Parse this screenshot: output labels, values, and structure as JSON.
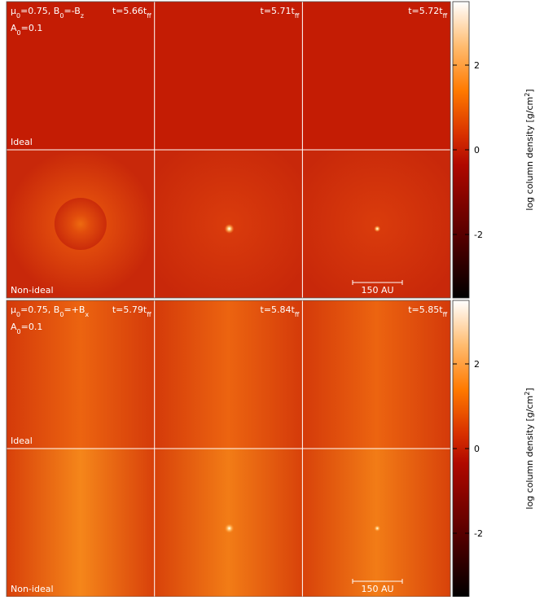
{
  "blocks": [
    {
      "params": [
        "μ",
        "0",
        "=0.75, B",
        "0",
        "=-B",
        "z"
      ],
      "amplitude": [
        "A",
        "0",
        "=0.1"
      ],
      "times": [
        [
          "t=5.66t",
          "ff"
        ],
        [
          "t=5.71t",
          "ff"
        ],
        [
          "t=5.72t",
          "ff"
        ]
      ],
      "rows": [
        "Ideal",
        "Non-ideal"
      ],
      "scale_bar": "150 AU",
      "colorbar": {
        "label": [
          "log column density [g/cm",
          "2",
          "]"
        ],
        "lim": [
          -3.5,
          3.5
        ],
        "ticks": [
          -2,
          0,
          2
        ]
      }
    },
    {
      "params": [
        "μ",
        "0",
        "=0.75, B",
        "0",
        "=+B",
        "x"
      ],
      "amplitude": [
        "A",
        "0",
        "=0.1"
      ],
      "times": [
        [
          "t=5.79t",
          "ff"
        ],
        [
          "t=5.84t",
          "ff"
        ],
        [
          "t=5.85t",
          "ff"
        ]
      ],
      "rows": [
        "Ideal",
        "Non-ideal"
      ],
      "scale_bar": "150 AU",
      "colorbar": {
        "label": [
          "log column density [g/cm",
          "2",
          "]"
        ],
        "lim": [
          -3.5,
          3.5
        ],
        "ticks": [
          -2,
          0,
          2
        ]
      }
    }
  ]
}
